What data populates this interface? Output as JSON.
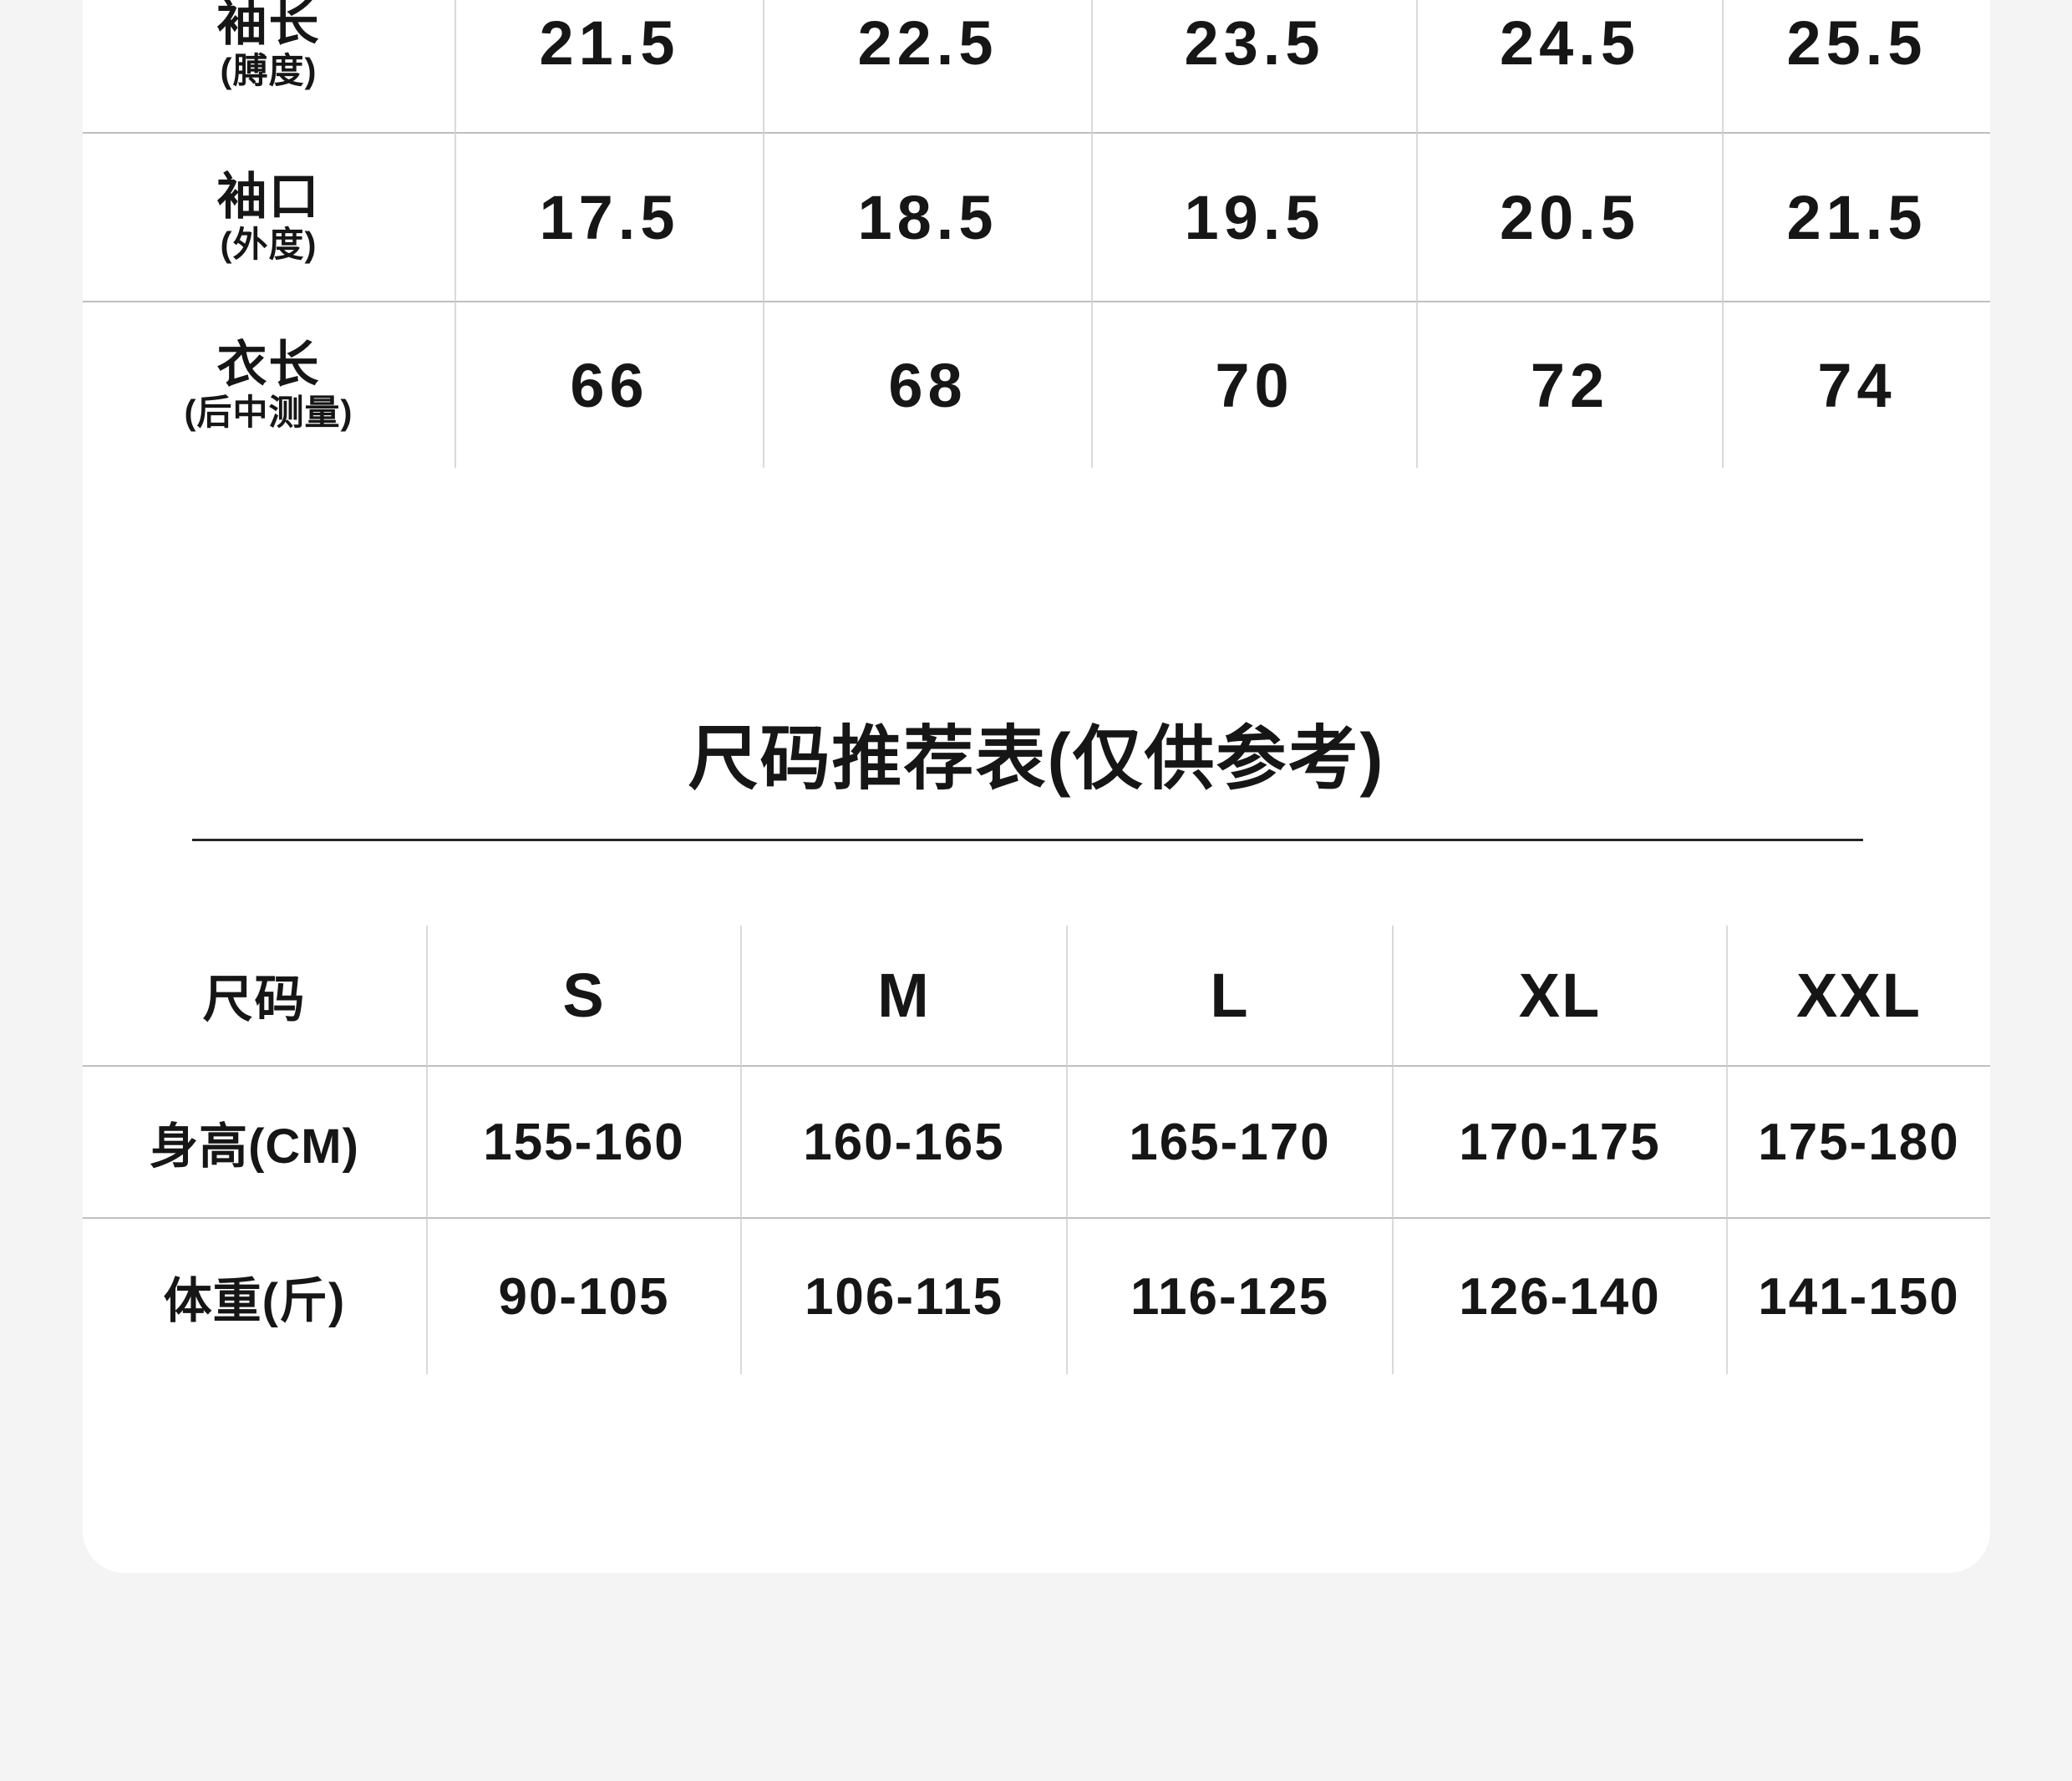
{
  "colors": {
    "page_bg": "#f4f4f5",
    "card_bg": "#ffffff",
    "text": "#161616",
    "table_line_vertical": "#d9d9d9",
    "table_line_horizontal": "#bfbfbf",
    "title_underline": "#262626"
  },
  "size_table": {
    "rows": [
      {
        "label": "袖长",
        "sub": "(膊度)",
        "values": [
          "21.5",
          "22.5",
          "23.5",
          "24.5",
          "25.5"
        ]
      },
      {
        "label": "袖口",
        "sub": "(外度)",
        "values": [
          "17.5",
          "18.5",
          "19.5",
          "20.5",
          "21.5"
        ]
      },
      {
        "label": "衣长",
        "sub": "(后中测量)",
        "values": [
          "66",
          "68",
          "70",
          "72",
          "74"
        ]
      }
    ]
  },
  "recommend": {
    "title": "尺码推荐表(仅供参考)",
    "header": [
      "尺码",
      "S",
      "M",
      "L",
      "XL",
      "XXL"
    ],
    "rows": [
      {
        "label": "身高(CM)",
        "values": [
          "155-160",
          "160-165",
          "165-170",
          "170-175",
          "175-180"
        ]
      },
      {
        "label": "体重(斤)",
        "values": [
          "90-105",
          "106-115",
          "116-125",
          "126-140",
          "141-150"
        ]
      }
    ]
  }
}
